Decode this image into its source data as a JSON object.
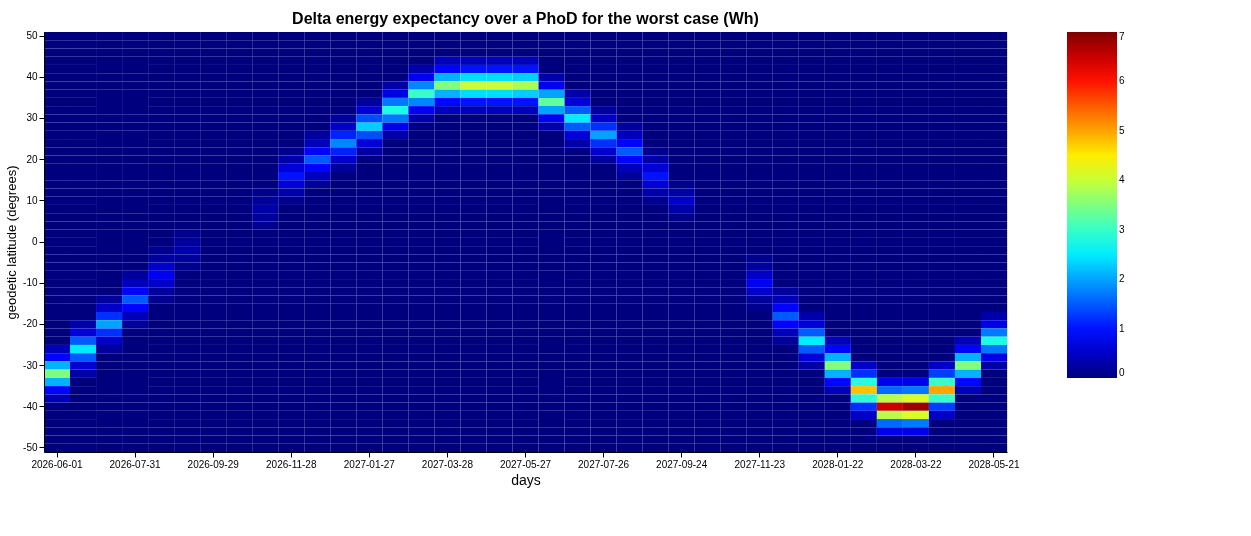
{
  "chart_data": {
    "type": "heatmap",
    "title": "Delta energy expectancy over a PhoD for the worst case (Wh)",
    "xlabel": "days",
    "ylabel": "geodetic latitude (degrees)",
    "categories": [
      "2026-06-01",
      null,
      null,
      "2026-07-31",
      null,
      null,
      "2026-09-29",
      null,
      null,
      "2026-11-28",
      null,
      null,
      "2027-01-27",
      null,
      null,
      "2027-03-28",
      null,
      null,
      "2027-05-27",
      null,
      null,
      "2027-07-26",
      null,
      null,
      "2027-09-24",
      null,
      null,
      "2027-11-23",
      null,
      null,
      "2028-01-22",
      null,
      null,
      "2028-03-22",
      null,
      null,
      "2028-05-21"
    ],
    "y_categories": [
      "50",
      null,
      null,
      null,
      null,
      "40",
      null,
      null,
      null,
      null,
      "30",
      null,
      null,
      null,
      null,
      "20",
      null,
      null,
      null,
      null,
      "10",
      null,
      null,
      null,
      null,
      "0",
      null,
      null,
      null,
      null,
      "-10",
      null,
      null,
      null,
      null,
      "-20",
      null,
      null,
      null,
      null,
      "-30",
      null,
      null,
      null,
      null,
      "-40",
      null,
      null,
      null,
      null,
      "-50"
    ],
    "cells": [
      [
        0,
        0,
        0,
        0,
        0,
        0,
        0,
        0,
        0,
        0,
        0,
        0,
        0,
        0,
        0,
        0,
        0,
        0,
        0,
        0,
        0,
        0,
        0,
        0,
        0,
        0,
        0,
        0,
        0,
        0,
        0,
        0,
        0,
        0,
        0,
        0,
        0
      ],
      [
        0,
        0,
        0,
        0,
        0,
        0,
        0,
        0,
        0,
        0,
        0,
        0,
        0,
        0,
        0,
        0,
        0,
        0,
        0,
        0,
        0,
        0,
        0,
        0,
        0,
        0,
        0,
        0,
        0,
        0,
        0,
        0,
        0,
        0,
        0,
        0,
        0
      ],
      [
        0,
        0,
        0,
        0,
        0,
        0,
        0,
        0,
        0,
        0,
        0,
        0,
        0,
        0,
        0,
        0,
        0,
        0,
        0,
        0,
        0,
        0,
        0,
        0,
        0,
        0,
        0,
        0,
        0,
        0,
        0,
        0,
        0,
        0,
        0,
        0,
        0
      ],
      [
        0,
        0,
        0,
        0,
        0,
        0,
        0,
        0,
        0,
        0,
        0,
        0,
        0,
        0,
        0,
        0.4,
        0.4,
        0.4,
        0.4,
        0,
        0,
        0,
        0,
        0,
        0,
        0,
        0,
        0,
        0,
        0,
        0,
        0,
        0,
        0,
        0,
        0,
        0
      ],
      [
        0,
        0,
        0,
        0,
        0,
        0,
        0,
        0,
        0,
        0,
        0,
        0,
        0,
        0,
        0.3,
        0.9,
        1,
        1,
        1,
        0,
        0,
        0,
        0,
        0,
        0,
        0,
        0,
        0,
        0,
        0,
        0,
        0,
        0,
        0,
        0,
        0,
        0
      ],
      [
        0,
        0,
        0,
        0,
        0,
        0,
        0,
        0,
        0,
        0,
        0,
        0,
        0,
        0,
        0.8,
        2.1,
        2.4,
        2.4,
        2.3,
        0.3,
        0,
        0,
        0,
        0,
        0,
        0,
        0,
        0,
        0,
        0,
        0,
        0,
        0,
        0,
        0,
        0,
        0
      ],
      [
        0,
        0,
        0,
        0,
        0,
        0,
        0,
        0,
        0,
        0,
        0,
        0,
        0,
        0.3,
        1.8,
        3.5,
        4,
        4,
        3.8,
        0.8,
        0,
        0,
        0,
        0,
        0,
        0,
        0,
        0,
        0,
        0,
        0,
        0,
        0,
        0,
        0,
        0,
        0
      ],
      [
        0,
        0,
        0,
        0,
        0,
        0,
        0,
        0,
        0,
        0,
        0,
        0,
        0,
        0.7,
        3,
        2.1,
        2.4,
        2.4,
        2.3,
        2,
        0.3,
        0,
        0,
        0,
        0,
        0,
        0,
        0,
        0,
        0,
        0,
        0,
        0,
        0,
        0,
        0,
        0
      ],
      [
        0,
        0,
        0,
        0,
        0,
        0,
        0,
        0,
        0,
        0,
        0,
        0,
        0.2,
        1.7,
        1.8,
        0.9,
        1,
        1,
        1,
        3.3,
        0.6,
        0,
        0,
        0,
        0,
        0,
        0,
        0,
        0,
        0,
        0,
        0,
        0,
        0,
        0,
        0,
        0
      ],
      [
        0,
        0,
        0,
        0,
        0,
        0,
        0,
        0,
        0,
        0,
        0,
        0,
        0.6,
        2.8,
        0.8,
        0.4,
        0.4,
        0.4,
        0.4,
        2,
        1.5,
        0.2,
        0,
        0,
        0,
        0,
        0,
        0,
        0,
        0,
        0,
        0,
        0,
        0,
        0,
        0,
        0
      ],
      [
        0,
        0,
        0,
        0,
        0,
        0,
        0,
        0,
        0,
        0,
        0,
        0.2,
        1.4,
        1.7,
        0.3,
        0,
        0,
        0,
        0,
        0.8,
        2.5,
        0.5,
        0,
        0,
        0,
        0,
        0,
        0,
        0,
        0,
        0,
        0,
        0,
        0,
        0,
        0,
        0
      ],
      [
        0,
        0,
        0,
        0,
        0,
        0,
        0,
        0,
        0,
        0,
        0,
        0.5,
        2.3,
        0.7,
        0,
        0,
        0,
        0,
        0,
        0.3,
        1.5,
        1.2,
        0.2,
        0,
        0,
        0,
        0,
        0,
        0,
        0,
        0,
        0,
        0,
        0,
        0,
        0,
        0
      ],
      [
        0,
        0,
        0,
        0,
        0,
        0,
        0,
        0,
        0,
        0,
        0.2,
        1.1,
        1.4,
        0.3,
        0,
        0,
        0,
        0,
        0,
        0,
        0.6,
        2,
        0.4,
        0,
        0,
        0,
        0,
        0,
        0,
        0,
        0,
        0,
        0,
        0,
        0,
        0,
        0
      ],
      [
        0,
        0,
        0,
        0,
        0,
        0,
        0,
        0,
        0,
        0,
        0.4,
        1.8,
        0.6,
        0,
        0,
        0,
        0,
        0,
        0,
        0,
        0.3,
        1.2,
        0.9,
        0,
        0,
        0,
        0,
        0,
        0,
        0,
        0,
        0,
        0,
        0,
        0,
        0,
        0
      ],
      [
        0,
        0,
        0,
        0,
        0,
        0,
        0,
        0,
        0,
        0.1,
        0.9,
        1.1,
        0.2,
        0,
        0,
        0,
        0,
        0,
        0,
        0,
        0,
        0.5,
        1.5,
        0.1,
        0,
        0,
        0,
        0,
        0,
        0,
        0,
        0,
        0,
        0,
        0,
        0,
        0
      ],
      [
        0,
        0,
        0,
        0,
        0,
        0,
        0,
        0,
        0,
        0.3,
        1.5,
        0.5,
        0,
        0,
        0,
        0,
        0,
        0,
        0,
        0,
        0,
        0.2,
        0.9,
        0.3,
        0,
        0,
        0,
        0,
        0,
        0,
        0,
        0,
        0,
        0,
        0,
        0,
        0
      ],
      [
        0,
        0,
        0,
        0,
        0,
        0,
        0,
        0,
        0,
        0.6,
        0.9,
        0.2,
        0,
        0,
        0,
        0,
        0,
        0,
        0,
        0,
        0,
        0,
        0.4,
        0.6,
        0,
        0,
        0,
        0,
        0,
        0,
        0,
        0,
        0,
        0,
        0,
        0,
        0
      ],
      [
        0,
        0,
        0,
        0,
        0,
        0,
        0,
        0,
        0,
        1,
        0.4,
        0,
        0,
        0,
        0,
        0,
        0,
        0,
        0,
        0,
        0,
        0,
        0.2,
        1,
        0,
        0,
        0,
        0,
        0,
        0,
        0,
        0,
        0,
        0,
        0,
        0,
        0
      ],
      [
        0,
        0,
        0,
        0,
        0,
        0,
        0,
        0,
        0,
        0.6,
        0.2,
        0,
        0,
        0,
        0,
        0,
        0,
        0,
        0,
        0,
        0,
        0,
        0,
        0.6,
        0.1,
        0,
        0,
        0,
        0,
        0,
        0,
        0,
        0,
        0,
        0,
        0,
        0
      ],
      [
        0,
        0,
        0,
        0,
        0,
        0,
        0,
        0,
        0.1,
        0.3,
        0,
        0,
        0,
        0,
        0,
        0,
        0,
        0,
        0,
        0,
        0,
        0,
        0,
        0.3,
        0.3,
        0,
        0,
        0,
        0,
        0,
        0,
        0,
        0,
        0,
        0,
        0,
        0
      ],
      [
        0,
        0,
        0,
        0,
        0,
        0,
        0,
        0,
        0.2,
        0.1,
        0,
        0,
        0,
        0,
        0,
        0,
        0,
        0,
        0,
        0,
        0,
        0,
        0,
        0.1,
        0.5,
        0,
        0,
        0,
        0,
        0,
        0,
        0,
        0,
        0,
        0,
        0,
        0
      ],
      [
        0,
        0,
        0,
        0,
        0,
        0,
        0,
        0,
        0.3,
        0,
        0,
        0,
        0,
        0,
        0,
        0,
        0,
        0,
        0,
        0,
        0,
        0,
        0,
        0,
        0.3,
        0,
        0,
        0,
        0,
        0,
        0,
        0,
        0,
        0,
        0,
        0,
        0
      ],
      [
        0,
        0,
        0,
        0,
        0,
        0,
        0,
        0,
        0.2,
        0,
        0,
        0,
        0,
        0,
        0,
        0,
        0,
        0,
        0,
        0,
        0,
        0,
        0,
        0,
        0.1,
        0,
        0,
        0,
        0,
        0,
        0,
        0,
        0,
        0,
        0,
        0,
        0
      ],
      [
        0,
        0,
        0,
        0,
        0,
        0,
        0,
        0,
        0.1,
        0,
        0,
        0,
        0,
        0,
        0,
        0,
        0,
        0,
        0,
        0,
        0,
        0,
        0,
        0,
        0,
        0,
        0,
        0,
        0,
        0,
        0,
        0,
        0,
        0,
        0,
        0,
        0
      ],
      [
        0,
        0,
        0,
        0,
        0,
        0.1,
        0,
        0,
        0,
        0,
        0,
        0,
        0,
        0,
        0,
        0,
        0,
        0,
        0,
        0,
        0,
        0,
        0,
        0,
        0,
        0,
        0,
        0,
        0,
        0,
        0,
        0,
        0,
        0,
        0,
        0,
        0
      ],
      [
        0,
        0,
        0,
        0,
        0,
        0.2,
        0,
        0,
        0,
        0,
        0,
        0,
        0,
        0,
        0,
        0,
        0,
        0,
        0,
        0,
        0,
        0,
        0,
        0,
        0,
        0,
        0,
        0,
        0,
        0,
        0,
        0,
        0,
        0,
        0,
        0,
        0
      ],
      [
        0,
        0,
        0,
        0,
        0.1,
        0.3,
        0,
        0,
        0,
        0,
        0,
        0,
        0,
        0,
        0,
        0,
        0,
        0,
        0,
        0,
        0,
        0,
        0,
        0,
        0,
        0,
        0,
        0,
        0,
        0,
        0,
        0,
        0,
        0,
        0,
        0,
        0
      ],
      [
        0,
        0,
        0,
        0,
        0.2,
        0.2,
        0,
        0,
        0,
        0,
        0,
        0,
        0,
        0,
        0,
        0,
        0,
        0,
        0,
        0,
        0,
        0,
        0,
        0,
        0,
        0,
        0,
        0.1,
        0,
        0,
        0,
        0,
        0,
        0,
        0,
        0,
        0
      ],
      [
        0,
        0,
        0,
        0,
        0.5,
        0.1,
        0,
        0,
        0,
        0,
        0,
        0,
        0,
        0,
        0,
        0,
        0,
        0,
        0,
        0,
        0,
        0,
        0,
        0,
        0,
        0,
        0,
        0.2,
        0,
        0,
        0,
        0,
        0,
        0,
        0,
        0,
        0
      ],
      [
        0,
        0,
        0,
        0.2,
        0.8,
        0,
        0,
        0,
        0,
        0,
        0,
        0,
        0,
        0,
        0,
        0,
        0,
        0,
        0,
        0,
        0,
        0,
        0,
        0,
        0,
        0,
        0,
        0.5,
        0,
        0,
        0,
        0,
        0,
        0,
        0,
        0,
        0
      ],
      [
        0,
        0,
        0,
        0.4,
        0.5,
        0,
        0,
        0,
        0,
        0,
        0,
        0,
        0,
        0,
        0,
        0,
        0,
        0,
        0,
        0,
        0,
        0,
        0,
        0,
        0,
        0,
        0,
        0.8,
        0,
        0,
        0,
        0,
        0,
        0,
        0,
        0,
        0
      ],
      [
        0,
        0,
        0,
        0.9,
        0.2,
        0,
        0,
        0,
        0,
        0,
        0,
        0,
        0,
        0,
        0,
        0,
        0,
        0,
        0,
        0,
        0,
        0,
        0,
        0,
        0,
        0,
        0,
        0.5,
        0.2,
        0,
        0,
        0,
        0,
        0,
        0,
        0,
        0
      ],
      [
        0,
        0,
        0.2,
        1.5,
        0.1,
        0,
        0,
        0,
        0,
        0,
        0,
        0,
        0,
        0,
        0,
        0,
        0,
        0,
        0,
        0,
        0,
        0,
        0,
        0,
        0,
        0,
        0,
        0.2,
        0.4,
        0,
        0,
        0,
        0,
        0,
        0,
        0,
        0
      ],
      [
        0,
        0,
        0.5,
        0.9,
        0,
        0,
        0,
        0,
        0,
        0,
        0,
        0,
        0,
        0,
        0,
        0,
        0,
        0,
        0,
        0,
        0,
        0,
        0,
        0,
        0,
        0,
        0,
        0.1,
        0.9,
        0,
        0,
        0,
        0,
        0,
        0,
        0,
        0
      ],
      [
        0,
        0,
        1.2,
        0.4,
        0,
        0,
        0,
        0,
        0,
        0,
        0,
        0,
        0,
        0,
        0,
        0,
        0,
        0,
        0,
        0,
        0,
        0,
        0,
        0,
        0,
        0,
        0,
        0,
        1.5,
        0.3,
        0,
        0,
        0,
        0,
        0,
        0,
        0.3
      ],
      [
        0,
        0.3,
        2,
        0.2,
        0,
        0,
        0,
        0,
        0,
        0,
        0,
        0,
        0,
        0,
        0,
        0,
        0,
        0,
        0,
        0,
        0,
        0,
        0,
        0,
        0,
        0,
        0,
        0,
        0.9,
        0.6,
        0,
        0,
        0,
        0,
        0,
        0,
        0.7
      ],
      [
        0,
        0.6,
        1.2,
        0,
        0,
        0,
        0,
        0,
        0,
        0,
        0,
        0,
        0,
        0,
        0,
        0,
        0,
        0,
        0,
        0,
        0,
        0,
        0,
        0,
        0,
        0,
        0,
        0,
        0.4,
        1.5,
        0,
        0,
        0,
        0,
        0,
        0,
        1.7
      ],
      [
        0,
        1.5,
        0.5,
        0,
        0,
        0,
        0,
        0,
        0,
        0,
        0,
        0,
        0,
        0,
        0,
        0,
        0,
        0,
        0,
        0,
        0,
        0,
        0,
        0,
        0,
        0,
        0,
        0,
        0.2,
        2.5,
        0.4,
        0,
        0,
        0,
        0,
        0.4,
        2.8
      ],
      [
        0.4,
        2.5,
        0.2,
        0,
        0,
        0,
        0,
        0,
        0,
        0,
        0,
        0,
        0,
        0,
        0,
        0,
        0,
        0,
        0,
        0,
        0,
        0,
        0,
        0,
        0,
        0,
        0,
        0,
        0,
        1.5,
        0.9,
        0,
        0,
        0,
        0,
        0.9,
        1.7
      ],
      [
        0.9,
        1.5,
        0,
        0,
        0,
        0,
        0,
        0,
        0,
        0,
        0,
        0,
        0,
        0,
        0,
        0,
        0,
        0,
        0,
        0,
        0,
        0,
        0,
        0,
        0,
        0,
        0,
        0,
        0,
        0.6,
        2.1,
        0,
        0,
        0,
        0,
        2.1,
        0.7
      ],
      [
        2.1,
        0.6,
        0,
        0,
        0,
        0,
        0,
        0,
        0,
        0,
        0,
        0,
        0,
        0,
        0,
        0,
        0,
        0,
        0,
        0,
        0,
        0,
        0,
        0,
        0,
        0,
        0,
        0,
        0,
        0.3,
        3.5,
        0.5,
        0,
        0,
        0.5,
        3.5,
        0.3
      ],
      [
        3.5,
        0.3,
        0,
        0,
        0,
        0,
        0,
        0,
        0,
        0,
        0,
        0,
        0,
        0,
        0,
        0,
        0,
        0,
        0,
        0,
        0,
        0,
        0,
        0,
        0,
        0,
        0,
        0,
        0,
        0,
        2.1,
        1.2,
        0,
        0,
        1.3,
        2.1,
        0
      ],
      [
        2.1,
        0,
        0,
        0,
        0,
        0,
        0,
        0,
        0,
        0,
        0,
        0,
        0,
        0,
        0,
        0,
        0,
        0,
        0,
        0,
        0,
        0,
        0,
        0,
        0,
        0,
        0,
        0,
        0,
        0,
        0.9,
        2.9,
        0.7,
        0.7,
        3,
        0.9,
        0
      ],
      [
        0.9,
        0,
        0,
        0,
        0,
        0,
        0,
        0,
        0,
        0,
        0,
        0,
        0,
        0,
        0,
        0,
        0,
        0,
        0,
        0,
        0,
        0,
        0,
        0,
        0,
        0,
        0,
        0,
        0,
        0,
        0.4,
        4.8,
        1.6,
        1.7,
        5,
        0.4,
        0
      ],
      [
        0.4,
        0,
        0,
        0,
        0,
        0,
        0,
        0,
        0,
        0,
        0,
        0,
        0,
        0,
        0,
        0,
        0,
        0,
        0,
        0,
        0,
        0,
        0,
        0,
        0,
        0,
        0,
        0,
        0,
        0,
        0,
        2.9,
        3.9,
        4.1,
        3,
        0,
        0
      ],
      [
        0,
        0,
        0,
        0,
        0,
        0,
        0,
        0,
        0,
        0,
        0,
        0,
        0,
        0,
        0,
        0,
        0,
        0,
        0,
        0,
        0,
        0,
        0,
        0,
        0,
        0,
        0,
        0,
        0,
        0,
        0,
        1.2,
        6.5,
        6.8,
        1.3,
        0,
        0
      ],
      [
        0,
        0,
        0,
        0,
        0,
        0,
        0,
        0,
        0,
        0,
        0,
        0,
        0,
        0,
        0,
        0,
        0,
        0,
        0,
        0,
        0,
        0,
        0,
        0,
        0,
        0,
        0,
        0,
        0,
        0,
        0,
        0.5,
        3.9,
        4.1,
        0.5,
        0,
        0
      ],
      [
        0,
        0,
        0,
        0,
        0,
        0,
        0,
        0,
        0,
        0,
        0,
        0,
        0,
        0,
        0,
        0,
        0,
        0,
        0,
        0,
        0,
        0,
        0,
        0,
        0,
        0,
        0,
        0,
        0,
        0,
        0,
        0,
        1.6,
        1.7,
        0,
        0,
        0
      ],
      [
        0,
        0,
        0,
        0,
        0,
        0,
        0,
        0,
        0,
        0,
        0,
        0,
        0,
        0,
        0,
        0,
        0,
        0,
        0,
        0,
        0,
        0,
        0,
        0,
        0,
        0,
        0,
        0,
        0,
        0,
        0,
        0,
        0.7,
        0.7,
        0,
        0,
        0
      ],
      [
        0,
        0,
        0,
        0,
        0,
        0,
        0,
        0,
        0,
        0,
        0,
        0,
        0,
        0,
        0,
        0,
        0,
        0,
        0,
        0,
        0,
        0,
        0,
        0,
        0,
        0,
        0,
        0,
        0,
        0,
        0,
        0,
        0,
        0,
        0,
        0,
        0
      ],
      [
        0,
        0,
        0,
        0,
        0,
        0,
        0,
        0,
        0,
        0,
        0,
        0,
        0,
        0,
        0,
        0,
        0,
        0,
        0,
        0,
        0,
        0,
        0,
        0,
        0,
        0,
        0,
        0,
        0,
        0,
        0,
        0,
        0,
        0,
        0,
        0,
        0
      ]
    ],
    "clim": [
      0,
      7
    ],
    "cticks": [
      0,
      1,
      2,
      3,
      4,
      5,
      6,
      7
    ]
  }
}
